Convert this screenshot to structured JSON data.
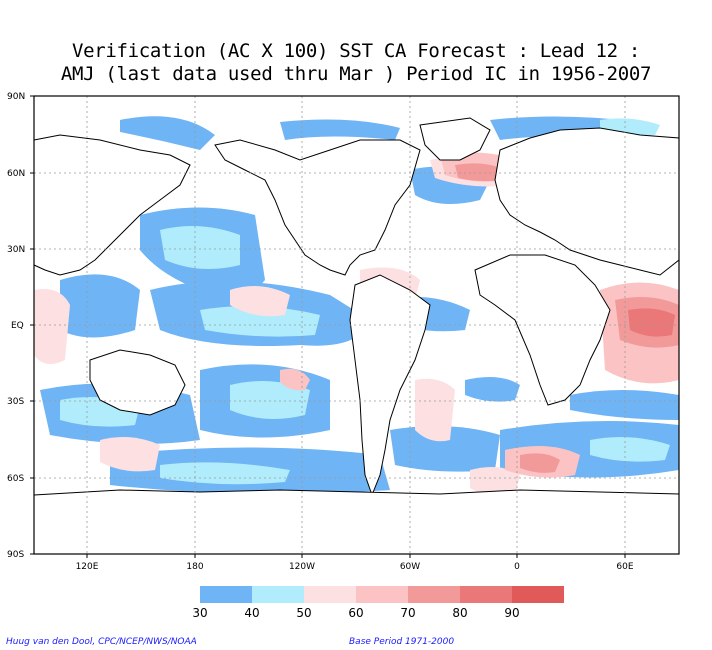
{
  "title_line1": "Verification (AC X 100) SST CA Forecast : Lead 12 :",
  "title_line2": "AMJ (last data used thru Mar ) Period IC in 1956-2007",
  "map": {
    "type": "global-map",
    "lat_labels": [
      "90N",
      "60N",
      "30N",
      "EQ",
      "30S",
      "60S",
      "90S"
    ],
    "lon_labels": [
      "120E",
      "180",
      "120W",
      "60W",
      "0",
      "60E"
    ],
    "gridlines": "dotted"
  },
  "legend": {
    "ticks": [
      "30",
      "40",
      "50",
      "60",
      "70",
      "80",
      "90"
    ],
    "colors": [
      "#6fb4f5",
      "#b0ecfb",
      "#fde0e2",
      "#fbc3c3",
      "#f29a9a",
      "#ea7878",
      "#e05a5a"
    ]
  },
  "footer": {
    "credit": "Huug van den Dool, CPC/NCEP/NWS/NOAA",
    "base_period": "Base Period 1971-2000"
  }
}
